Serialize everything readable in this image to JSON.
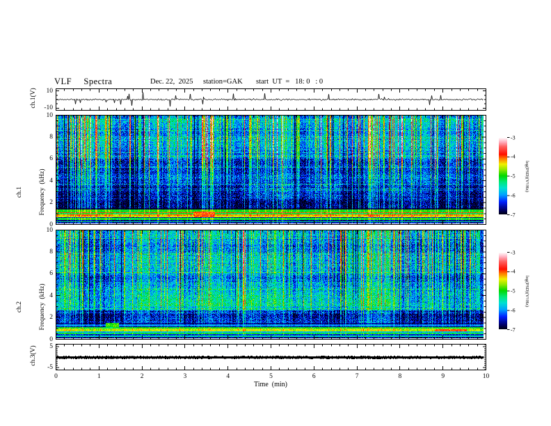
{
  "title": {
    "main": "VLF  Spectra",
    "date": "Dec. 22,  2025",
    "station": "station=GAK",
    "start_ut": "start  UT  =   18: 0   : 0"
  },
  "xaxis": {
    "label": "Time  (min)",
    "ticks": [
      0,
      1,
      2,
      3,
      4,
      5,
      6,
      7,
      8,
      9,
      10
    ],
    "minor_step_min": 0.2,
    "range_min": [
      0,
      10
    ]
  },
  "colorbar": {
    "label": "log(PSD)(V²/Hz)",
    "ticks": [
      -3,
      -4,
      -5,
      -6,
      -7
    ],
    "range": [
      -7,
      -3
    ]
  },
  "colors": {
    "background": "#ffffff",
    "frame": "#000000",
    "trace": "#000000",
    "colormap_stops": [
      [
        0.0,
        "#000014"
      ],
      [
        0.06,
        "#000070"
      ],
      [
        0.16,
        "#0020ff"
      ],
      [
        0.25,
        "#00a0ff"
      ],
      [
        0.34,
        "#00e0d0"
      ],
      [
        0.42,
        "#00e878"
      ],
      [
        0.5,
        "#00d800"
      ],
      [
        0.58,
        "#90e800"
      ],
      [
        0.65,
        "#f0f000"
      ],
      [
        0.72,
        "#ff8000"
      ],
      [
        0.78,
        "#ff1000"
      ],
      [
        0.88,
        "#ff6060"
      ],
      [
        0.94,
        "#ffb0c0"
      ],
      [
        1.0,
        "#ffffff"
      ]
    ]
  },
  "chart_data": [
    {
      "type": "line",
      "name": "ch1_waveform",
      "ylabel": "ch.1(V)",
      "ylim_v": [
        -12.5,
        12.5
      ],
      "yticks": [
        10,
        -10
      ],
      "x_range_min": [
        0,
        10
      ],
      "signal": {
        "mean_v": 0,
        "noise_std_v": 1.05,
        "spike_prob": 0.035,
        "spike_amp_v": [
          3,
          9
        ],
        "seed": 11
      }
    },
    {
      "type": "heatmap",
      "name": "ch1_spectrogram",
      "ylabel_top": "ch.1",
      "ylabel_bottom": "Frequency  (kHz)",
      "ylim_khz": [
        0,
        10
      ],
      "yticks": [
        10,
        8,
        6,
        4,
        2,
        0
      ],
      "y_minor_step": 0.5,
      "clim_log_psd": [
        -7,
        -3
      ],
      "structure": {
        "seed": 42,
        "noise": 0.5,
        "hline_prob": 0.07,
        "hline_boost": 0.38,
        "band_top_khz": 1.45,
        "regions": [
          {
            "f": [
              6,
              10
            ],
            "level": -6.0
          },
          {
            "f": [
              4.5,
              6
            ],
            "level": -6.45
          },
          {
            "f": [
              2.2,
              4.5
            ],
            "level": -6.3
          },
          {
            "f": [
              1.45,
              2.2
            ],
            "level": -6.65
          }
        ],
        "bands": [
          [
            1.3,
            1.45,
            -7.0
          ],
          [
            1.05,
            1.3,
            -5.0
          ],
          [
            0.95,
            1.05,
            -3.95
          ],
          [
            0.86,
            0.95,
            -5.2
          ],
          [
            0.74,
            0.86,
            -4.2
          ],
          [
            0.58,
            0.74,
            -4.5
          ],
          [
            0.5,
            0.58,
            -6.6
          ],
          [
            0.34,
            0.5,
            -5.1
          ],
          [
            0.22,
            0.34,
            -6.7
          ],
          [
            0.12,
            0.22,
            -5.4
          ],
          [
            0.0,
            0.12,
            -6.6
          ]
        ],
        "blobs": [
          {
            "t": [
              3.2,
              3.7
            ],
            "f": [
              0.58,
              1.12
            ],
            "level": -4.1
          },
          {
            "t": [
              4.3,
              6.6
            ],
            "f": [
              2.3,
              3.7
            ],
            "boost": 0.5
          },
          {
            "t": [
              7.6,
              8.3
            ],
            "f": [
              2.6,
              3.4
            ],
            "boost": 0.35
          }
        ],
        "streaks": {
          "density": 0.5,
          "max_boost": 2.8,
          "dark_prob": 0.06,
          "profile": [
            [
              0,
              0.3
            ],
            [
              1.45,
              0.55
            ],
            [
              2.2,
              0.35
            ],
            [
              4.5,
              0.55
            ],
            [
              6,
              1.0
            ],
            [
              10,
              1.0
            ]
          ]
        }
      }
    },
    {
      "type": "heatmap",
      "name": "ch2_spectrogram",
      "ylabel_top": "ch.2",
      "ylabel_bottom": "Frequency  (kHz)",
      "ylim_khz": [
        0,
        10
      ],
      "yticks": [
        10,
        8,
        6,
        4,
        2,
        0
      ],
      "y_minor_step": 0.5,
      "clim_log_psd": [
        -7,
        -3
      ],
      "structure": {
        "seed": 77,
        "noise": 0.5,
        "hline_prob": 0.08,
        "hline_boost": 0.42,
        "band_top_khz": 1.45,
        "regions": [
          {
            "f": [
              5.2,
              10
            ],
            "level": -6.05
          },
          {
            "f": [
              2.6,
              5.2
            ],
            "level": -5.8
          },
          {
            "f": [
              1.45,
              2.6
            ],
            "level": -6.5
          }
        ],
        "bands": [
          [
            1.3,
            1.45,
            -6.8
          ],
          [
            1.1,
            1.3,
            -6.1
          ],
          [
            1.0,
            1.1,
            -6.9
          ],
          [
            0.88,
            1.0,
            -5.2
          ],
          [
            0.62,
            0.88,
            -4.6
          ],
          [
            0.52,
            0.62,
            -5.9
          ],
          [
            0.4,
            0.52,
            -5.2
          ],
          [
            0.25,
            0.4,
            -6.5
          ],
          [
            0.1,
            0.25,
            -5.6
          ],
          [
            0.0,
            0.1,
            -6.8
          ]
        ],
        "blobs": [
          {
            "t": [
              1.15,
              1.45
            ],
            "f": [
              1.0,
              1.4
            ],
            "level": -4.9
          },
          {
            "t": [
              8.85,
              9.6
            ],
            "f": [
              0.66,
              0.84
            ],
            "level": -4.0
          },
          {
            "t": [
              2.0,
              8.0
            ],
            "f": [
              3.0,
              4.0
            ],
            "boost": 0.35
          }
        ],
        "streaks": {
          "density": 0.55,
          "max_boost": 2.3,
          "dark_prob": 0.06,
          "profile": [
            [
              0,
              0.3
            ],
            [
              1.45,
              0.35
            ],
            [
              2.6,
              0.5
            ],
            [
              5.2,
              0.7
            ],
            [
              7,
              1.0
            ],
            [
              10,
              1.0
            ]
          ]
        }
      }
    },
    {
      "type": "line",
      "name": "ch3_waveform",
      "ylabel": "ch.3(V)",
      "ylim_v": [
        -6.2,
        6.2
      ],
      "yticks": [
        5,
        -5
      ],
      "x_range_min": [
        0,
        10
      ],
      "signal": {
        "flat_level_v": 0,
        "bar_halfwidth_v": 0.55,
        "seed": 5
      }
    }
  ]
}
